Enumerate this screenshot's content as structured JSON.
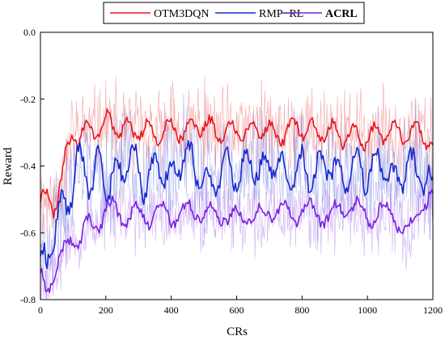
{
  "chart_data": {
    "type": "line",
    "title": "",
    "xlabel": "CRs",
    "ylabel": "Reward",
    "xlim": [
      0,
      1200
    ],
    "ylim": [
      -0.8,
      0.0
    ],
    "xticks": [
      0,
      200,
      400,
      600,
      800,
      1000,
      1200
    ],
    "yticks": [
      0.0,
      -0.2,
      -0.4,
      -0.6,
      -0.8
    ],
    "xtick_labels": [
      "0",
      "200",
      "400",
      "600",
      "800",
      "1000",
      "1200"
    ],
    "ytick_labels": [
      "0.0",
      "-0.2",
      "-0.4",
      "-0.6",
      "-0.8"
    ],
    "grid": false,
    "legend_position": "top-center",
    "series": [
      {
        "name": "OTM3DQN",
        "color": "#e8161b",
        "bold": false,
        "x": [
          0,
          20,
          40,
          60,
          80,
          100,
          120,
          140,
          160,
          180,
          200,
          240,
          280,
          320,
          360,
          400,
          440,
          480,
          520,
          560,
          600,
          640,
          680,
          720,
          760,
          800,
          840,
          880,
          920,
          960,
          1000,
          1040,
          1080,
          1120,
          1160,
          1200
        ],
        "values": [
          -0.5,
          -0.5,
          -0.52,
          -0.45,
          -0.37,
          -0.3,
          -0.31,
          -0.29,
          -0.3,
          -0.28,
          -0.27,
          -0.29,
          -0.3,
          -0.29,
          -0.31,
          -0.28,
          -0.3,
          -0.27,
          -0.29,
          -0.3,
          -0.29,
          -0.3,
          -0.28,
          -0.31,
          -0.29,
          -0.28,
          -0.3,
          -0.29,
          -0.31,
          -0.3,
          -0.32,
          -0.3,
          -0.29,
          -0.31,
          -0.3,
          -0.34
        ]
      },
      {
        "name": "RMP−RL",
        "color": "#1428d0",
        "bold": false,
        "x": [
          0,
          20,
          40,
          60,
          80,
          100,
          120,
          140,
          160,
          180,
          200,
          240,
          280,
          320,
          360,
          400,
          440,
          480,
          520,
          560,
          600,
          640,
          680,
          720,
          760,
          800,
          840,
          880,
          920,
          960,
          1000,
          1040,
          1080,
          1120,
          1160,
          1200
        ],
        "values": [
          -0.7,
          -0.68,
          -0.6,
          -0.55,
          -0.5,
          -0.45,
          -0.37,
          -0.42,
          -0.45,
          -0.38,
          -0.46,
          -0.42,
          -0.38,
          -0.45,
          -0.4,
          -0.44,
          -0.36,
          -0.42,
          -0.47,
          -0.4,
          -0.43,
          -0.38,
          -0.42,
          -0.37,
          -0.45,
          -0.4,
          -0.43,
          -0.38,
          -0.44,
          -0.4,
          -0.42,
          -0.39,
          -0.45,
          -0.4,
          -0.42,
          -0.47
        ]
      },
      {
        "name": "ACRL",
        "color": "#7a1fe0",
        "bold": true,
        "x": [
          0,
          20,
          40,
          60,
          80,
          100,
          120,
          140,
          160,
          180,
          200,
          240,
          280,
          320,
          360,
          400,
          440,
          480,
          520,
          560,
          600,
          640,
          680,
          720,
          760,
          800,
          840,
          880,
          920,
          960,
          1000,
          1040,
          1080,
          1120,
          1160,
          1200
        ],
        "values": [
          -0.74,
          -0.76,
          -0.72,
          -0.69,
          -0.65,
          -0.6,
          -0.62,
          -0.58,
          -0.59,
          -0.56,
          -0.52,
          -0.55,
          -0.54,
          -0.56,
          -0.53,
          -0.55,
          -0.54,
          -0.53,
          -0.55,
          -0.54,
          -0.56,
          -0.54,
          -0.55,
          -0.52,
          -0.55,
          -0.53,
          -0.54,
          -0.55,
          -0.53,
          -0.52,
          -0.55,
          -0.54,
          -0.53,
          -0.62,
          -0.52,
          -0.5
        ]
      }
    ]
  }
}
